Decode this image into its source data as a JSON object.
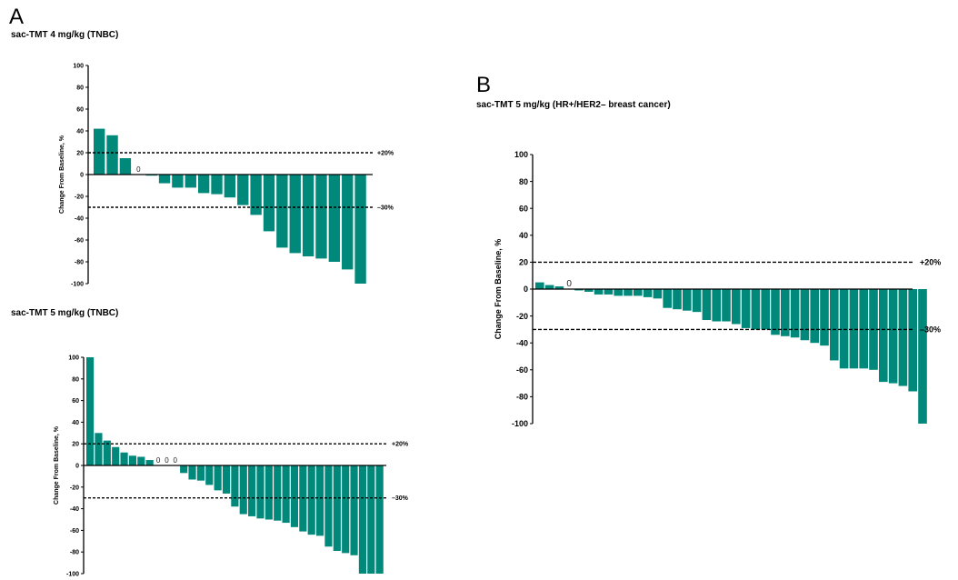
{
  "panels": [
    {
      "letter": "A"
    },
    {
      "letter": "B"
    }
  ],
  "colors": {
    "bar": "#00897B",
    "axis": "#000000",
    "ref": "#000000"
  },
  "chart_data": [
    {
      "type": "bar",
      "panel": "A",
      "title": "sac-TMT 4 mg/kg (TNBC)",
      "ylabel": "Change  From Baseline, %",
      "xlabel": "",
      "ylim": [
        -100,
        100
      ],
      "yticks": [
        100,
        80,
        60,
        40,
        20,
        0,
        -20,
        -40,
        -60,
        -80,
        -100
      ],
      "ref_lines": [
        {
          "value": 20,
          "label": "+20%"
        },
        {
          "value": -30,
          "label": "–30%"
        }
      ],
      "zero_label": "0",
      "values": [
        42,
        36,
        15,
        0,
        -1,
        -8,
        -12,
        -12,
        -17,
        -18,
        -21,
        -28,
        -37,
        -52,
        -67,
        -72,
        -75,
        -77,
        -80,
        -87,
        -100
      ]
    },
    {
      "type": "bar",
      "panel": "A",
      "title": "sac-TMT 5 mg/kg (TNBC)",
      "ylabel": "Change  From Baseline, %",
      "xlabel": "",
      "ylim": [
        -100,
        100
      ],
      "yticks": [
        100,
        80,
        60,
        40,
        20,
        0,
        -20,
        -40,
        -60,
        -80,
        -100
      ],
      "ref_lines": [
        {
          "value": 20,
          "label": "+20%"
        },
        {
          "value": -30,
          "label": "–30%"
        }
      ],
      "zero_label": "0",
      "values": [
        102,
        30,
        23,
        17,
        12,
        9,
        8,
        5,
        0,
        0,
        0,
        -7,
        -13,
        -14,
        -18,
        -23,
        -26,
        -38,
        -45,
        -47,
        -49,
        -50,
        -51,
        -53,
        -57,
        -61,
        -64,
        -65,
        -75,
        -79,
        -81,
        -83,
        -100,
        -100,
        -100
      ]
    },
    {
      "type": "bar",
      "panel": "B",
      "title": "sac-TMT 5 mg/kg (HR+/HER2– breast cancer)",
      "ylabel": "Change  From Baseline,  %",
      "xlabel": "",
      "ylim": [
        -100,
        100
      ],
      "yticks": [
        100,
        80,
        60,
        40,
        20,
        0,
        -20,
        -40,
        -60,
        -80,
        -100
      ],
      "ref_lines": [
        {
          "value": 20,
          "label": "+20%"
        },
        {
          "value": -30,
          "label": "–30%"
        }
      ],
      "zero_label": "0",
      "values": [
        5,
        3,
        2,
        0,
        -1,
        -2,
        -4,
        -4,
        -5,
        -5,
        -5,
        -6,
        -7,
        -14,
        -15,
        -16,
        -17,
        -23,
        -24,
        -24,
        -26,
        -29,
        -30,
        -30,
        -34,
        -35,
        -36,
        -38,
        -40,
        -42,
        -53,
        -59,
        -59,
        -59,
        -60,
        -69,
        -70,
        -72,
        -76,
        -100
      ]
    }
  ]
}
